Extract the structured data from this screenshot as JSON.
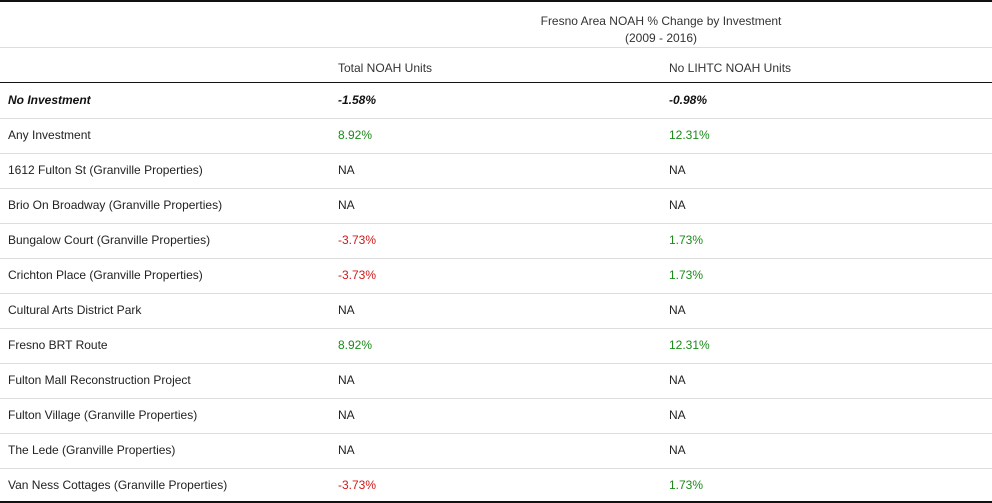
{
  "table": {
    "title_line1": "Fresno Area NOAH % Change by Investment",
    "title_line2": "(2009 - 2016)",
    "columns": [
      "",
      "Total NOAH Units",
      "No LIHTC NOAH Units"
    ],
    "rows": [
      {
        "name": "No Investment",
        "total": "-1.58%",
        "no_lihtc": "-0.98%",
        "emphasis": true
      },
      {
        "name": "Any Investment",
        "total": "8.92%",
        "no_lihtc": "12.31%"
      },
      {
        "name": "1612 Fulton St (Granville Properties)",
        "total": "NA",
        "no_lihtc": "NA"
      },
      {
        "name": "Brio On Broadway (Granville Properties)",
        "total": "NA",
        "no_lihtc": "NA"
      },
      {
        "name": "Bungalow Court (Granville Properties)",
        "total": "-3.73%",
        "no_lihtc": "1.73%"
      },
      {
        "name": "Crichton Place (Granville Properties)",
        "total": "-3.73%",
        "no_lihtc": "1.73%"
      },
      {
        "name": "Cultural Arts District Park",
        "total": "NA",
        "no_lihtc": "NA"
      },
      {
        "name": "Fresno BRT Route",
        "total": "8.92%",
        "no_lihtc": "12.31%"
      },
      {
        "name": "Fulton Mall Reconstruction Project",
        "total": "NA",
        "no_lihtc": "NA"
      },
      {
        "name": "Fulton Village (Granville Properties)",
        "total": "NA",
        "no_lihtc": "NA"
      },
      {
        "name": "The Lede (Granville Properties)",
        "total": "NA",
        "no_lihtc": "NA"
      },
      {
        "name": "Van Ness Cottages (Granville Properties)",
        "total": "-3.73%",
        "no_lihtc": "1.73%"
      }
    ]
  },
  "colors": {
    "positive": "#1a8a1a",
    "negative": "#d01818",
    "neutral": "#222222"
  },
  "chart_data": {
    "type": "table",
    "title": "Fresno Area NOAH % Change by Investment (2009 - 2016)",
    "columns": [
      "",
      "Total NOAH Units",
      "No LIHTC NOAH Units"
    ],
    "rows": [
      [
        "No Investment",
        "-1.58%",
        "-0.98%"
      ],
      [
        "Any Investment",
        "8.92%",
        "12.31%"
      ],
      [
        "1612 Fulton St (Granville Properties)",
        "NA",
        "NA"
      ],
      [
        "Brio On Broadway (Granville Properties)",
        "NA",
        "NA"
      ],
      [
        "Bungalow Court (Granville Properties)",
        "-3.73%",
        "1.73%"
      ],
      [
        "Crichton Place (Granville Properties)",
        "-3.73%",
        "1.73%"
      ],
      [
        "Cultural Arts District Park",
        "NA",
        "NA"
      ],
      [
        "Fresno BRT Route",
        "8.92%",
        "12.31%"
      ],
      [
        "Fulton Mall Reconstruction Project",
        "NA",
        "NA"
      ],
      [
        "Fulton Village (Granville Properties)",
        "NA",
        "NA"
      ],
      [
        "The Lede (Granville Properties)",
        "NA",
        "NA"
      ],
      [
        "Van Ness Cottages (Granville Properties)",
        "-3.73%",
        "1.73%"
      ]
    ]
  }
}
